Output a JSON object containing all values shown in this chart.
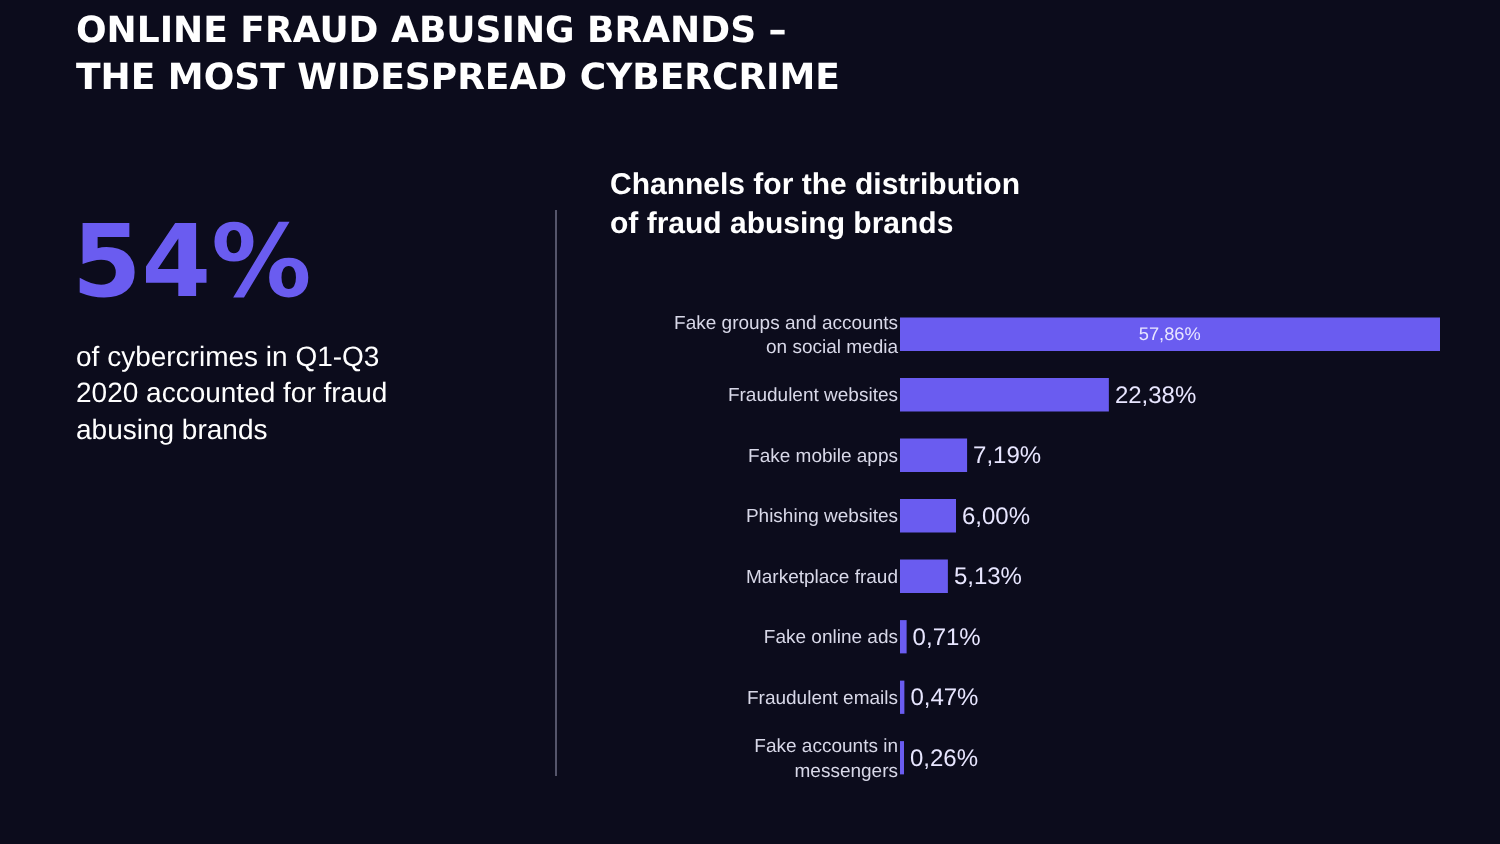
{
  "chart_data": {
    "type": "bar",
    "orientation": "horizontal",
    "title": "ONLINE FRAUD ABUSING BRANDS – THE MOST WIDESPREAD CYBERCRIME",
    "subtitle": "Channels for the distribution of fraud abusing brands",
    "categories": [
      "Fake groups and accounts on social media",
      "Fraudulent websites",
      "Fake mobile apps",
      "Phishing websites",
      "Marketplace fraud",
      "Fake online ads",
      "Fraudulent emails",
      "Fake accounts in messengers"
    ],
    "values": [
      57.86,
      22.38,
      7.19,
      6.0,
      5.13,
      0.71,
      0.47,
      0.26
    ],
    "value_labels": [
      "57,86%",
      "22,38%",
      "7,19%",
      "6,00%",
      "5,13%",
      "0,71%",
      "0,47%",
      "0,26%"
    ],
    "color": "#6a5cf0",
    "annotations": [
      "54%",
      "of cybercrimes in Q1-Q3 2020 accounted for fraud abusing brands"
    ]
  }
}
